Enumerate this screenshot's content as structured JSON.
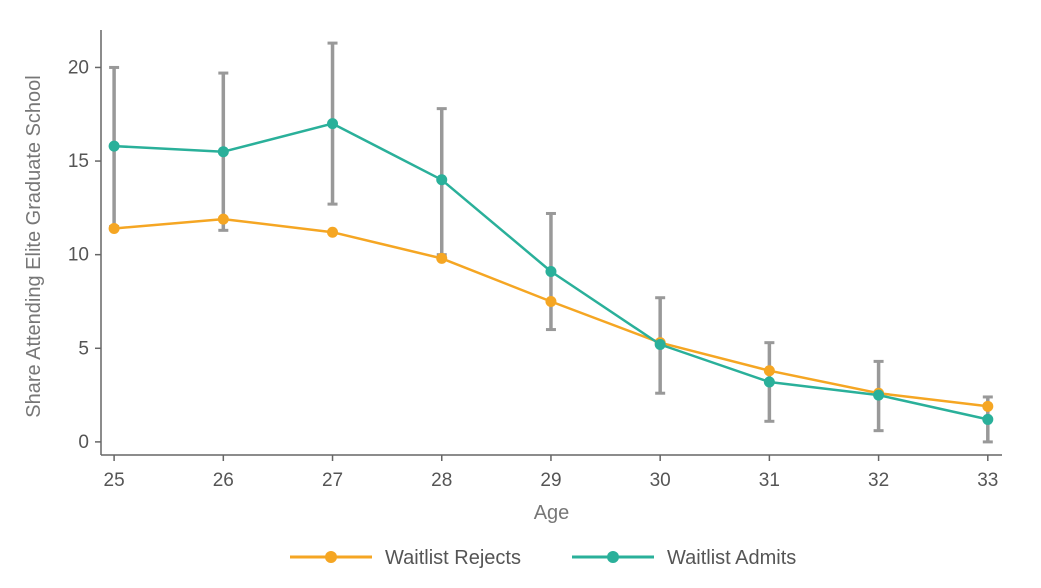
{
  "chart_data": {
    "type": "line",
    "title": "",
    "xlabel": "Age",
    "ylabel": "Share Attending Elite Graduate School",
    "x": [
      25,
      26,
      27,
      28,
      29,
      30,
      31,
      32,
      33
    ],
    "xlim": [
      24.88,
      33.13
    ],
    "ylim": [
      -0.7,
      22
    ],
    "yticks": [
      0,
      5,
      10,
      15,
      20
    ],
    "grid": false,
    "legend_position": "bottom-center",
    "series": [
      {
        "name": "Waitlist Rejects",
        "color": "#f5a623",
        "values": [
          11.4,
          11.9,
          11.2,
          9.8,
          7.5,
          5.3,
          3.8,
          2.6,
          1.9
        ]
      },
      {
        "name": "Waitlist Admits",
        "color": "#2ab09a",
        "values": [
          15.8,
          15.5,
          17.0,
          14.0,
          9.1,
          5.2,
          3.2,
          2.5,
          1.2
        ],
        "error_low": [
          11.5,
          11.3,
          12.7,
          10.0,
          6.0,
          2.6,
          1.1,
          0.6,
          0.0
        ],
        "error_high": [
          20.0,
          19.7,
          21.3,
          17.8,
          12.2,
          7.7,
          5.3,
          4.3,
          2.4
        ]
      }
    ],
    "error_bar_color": "#999999"
  }
}
